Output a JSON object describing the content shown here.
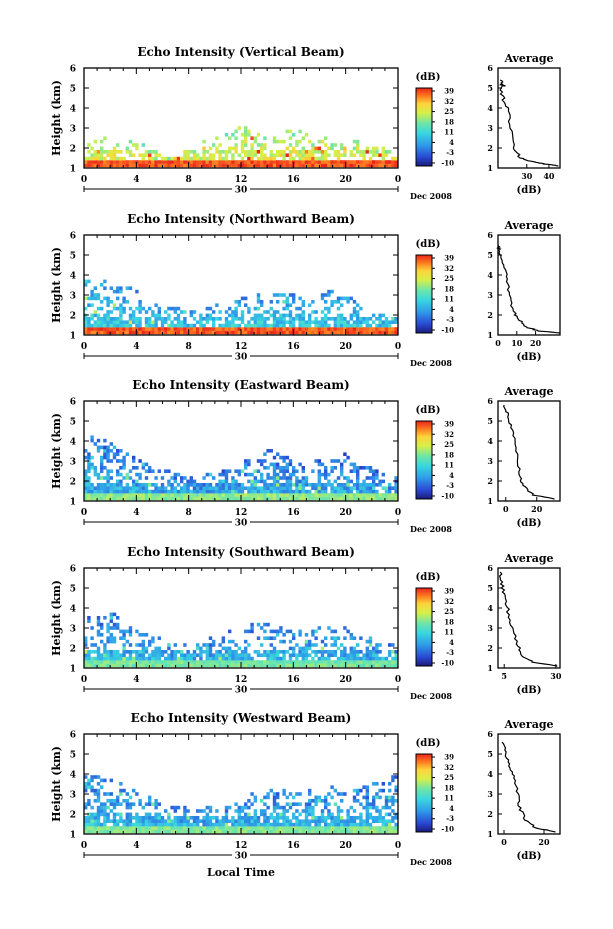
{
  "chart_data": {
    "type": "heatmap",
    "layout": "5 stacked range-time echo intensity panels, each with a color bar and an average profile plot",
    "panels": [
      {
        "title": "Echo Intensity (Vertical Beam)",
        "ylabel": "Height (km)",
        "ylim": [
          1,
          6
        ],
        "yticks": [
          "1",
          "2",
          "3",
          "4",
          "5",
          "6"
        ],
        "xticks": [
          "0",
          "4",
          "8",
          "12",
          "16",
          "20",
          "0"
        ],
        "xlim": [
          0,
          24
        ],
        "date_label": "30",
        "month_label": "Dec 2008",
        "colorbar": {
          "unit": "(dB)",
          "ticks": [
            "39",
            "32",
            "25",
            "18",
            "11",
            "4",
            "-3",
            "-10"
          ],
          "range": [
            -10,
            39
          ]
        },
        "echo": {
          "base": 24,
          "surface_echo": 39,
          "top_envelope": [
            2.3,
            2.4,
            2.6,
            2.3,
            2.2,
            2.2,
            1.4,
            1.5,
            2.0,
            2.2,
            2.5,
            2.6,
            3.0,
            2.8,
            2.7,
            3.2,
            3.0,
            2.6,
            2.4,
            2.5,
            2.3,
            2.4,
            2.0,
            1.9,
            1.7
          ],
          "density": 0.45
        },
        "average": {
          "title": "Average",
          "xlabel": "(dB)",
          "xlim": [
            17,
            45
          ],
          "xticks": [
            "30",
            "40"
          ],
          "ylim": [
            1,
            6
          ],
          "profile": [
            [
              45,
              1.1
            ],
            [
              38,
              1.2
            ],
            [
              33,
              1.3
            ],
            [
              27,
              1.5
            ],
            [
              24,
              2.0
            ],
            [
              23,
              3.0
            ],
            [
              21,
              4.0
            ],
            [
              19,
              4.6
            ],
            [
              18,
              5.2
            ],
            [
              20,
              5.1
            ],
            [
              18,
              5.4
            ]
          ]
        }
      },
      {
        "title": "Echo Intensity (Northward Beam)",
        "ylabel": "Height (km)",
        "ylim": [
          1,
          6
        ],
        "yticks": [
          "1",
          "2",
          "3",
          "4",
          "5",
          "6"
        ],
        "xticks": [
          "0",
          "4",
          "8",
          "12",
          "16",
          "20",
          "0"
        ],
        "xlim": [
          0,
          24
        ],
        "date_label": "30",
        "month_label": "Dec 2008",
        "colorbar": {
          "unit": "(dB)",
          "ticks": [
            "39",
            "32",
            "25",
            "18",
            "11",
            "4",
            "-3",
            "-10"
          ],
          "range": [
            -10,
            39
          ]
        },
        "echo": {
          "base": 8,
          "surface_echo": 39,
          "top_envelope": [
            3.7,
            3.8,
            3.6,
            3.4,
            3.2,
            2.6,
            2.5,
            2.4,
            2.2,
            2.2,
            2.5,
            2.6,
            2.8,
            2.9,
            3.0,
            3.1,
            3.0,
            2.8,
            2.9,
            3.2,
            3.0,
            2.6,
            2.2,
            2.0,
            1.8
          ],
          "density": 0.55
        },
        "average": {
          "title": "Average",
          "xlabel": "(dB)",
          "xlim": [
            0,
            33
          ],
          "xticks": [
            "0",
            "10",
            "20"
          ],
          "ylim": [
            1,
            6
          ],
          "profile": [
            [
              33,
              1.1
            ],
            [
              22,
              1.2
            ],
            [
              15,
              1.4
            ],
            [
              11,
              1.8
            ],
            [
              8,
              2.2
            ],
            [
              6,
              3.0
            ],
            [
              5,
              3.8
            ],
            [
              3,
              4.5
            ],
            [
              1,
              5.2
            ],
            [
              0,
              5.5
            ]
          ]
        }
      },
      {
        "title": "Echo Intensity (Eastward Beam)",
        "ylabel": "Height (km)",
        "ylim": [
          1,
          6
        ],
        "yticks": [
          "1",
          "2",
          "3",
          "4",
          "5",
          "6"
        ],
        "xticks": [
          "0",
          "4",
          "8",
          "12",
          "16",
          "20",
          "0"
        ],
        "xlim": [
          0,
          24
        ],
        "date_label": "30",
        "month_label": "Dec 2008",
        "colorbar": {
          "unit": "(dB)",
          "ticks": [
            "39",
            "32",
            "25",
            "18",
            "11",
            "4",
            "-3",
            "-10"
          ],
          "range": [
            -10,
            39
          ]
        },
        "echo": {
          "base": 4,
          "surface_echo": 22,
          "top_envelope": [
            4.0,
            4.2,
            3.9,
            3.5,
            3.0,
            2.8,
            2.5,
            2.4,
            2.2,
            2.2,
            2.4,
            2.6,
            2.8,
            3.2,
            3.6,
            3.4,
            3.0,
            2.8,
            3.0,
            3.2,
            3.3,
            2.8,
            2.6,
            2.4,
            2.2
          ],
          "density": 0.62
        },
        "average": {
          "title": "Average",
          "xlabel": "(dB)",
          "xlim": [
            -5,
            35
          ],
          "xticks": [
            "0",
            "20"
          ],
          "ylim": [
            1,
            6
          ],
          "profile": [
            [
              32,
              1.1
            ],
            [
              18,
              1.3
            ],
            [
              12,
              1.7
            ],
            [
              9,
              2.2
            ],
            [
              8,
              3.0
            ],
            [
              6,
              4.0
            ],
            [
              3,
              4.8
            ],
            [
              1,
              5.4
            ],
            [
              -1,
              5.8
            ]
          ]
        }
      },
      {
        "title": "Echo Intensity (Southward Beam)",
        "ylabel": "Height (km)",
        "ylim": [
          1,
          6
        ],
        "yticks": [
          "1",
          "2",
          "3",
          "4",
          "5",
          "6"
        ],
        "xticks": [
          "0",
          "4",
          "8",
          "12",
          "16",
          "20",
          "0"
        ],
        "xlim": [
          0,
          24
        ],
        "date_label": "30",
        "month_label": "Dec 2008",
        "colorbar": {
          "unit": "(dB)",
          "ticks": [
            "39",
            "32",
            "25",
            "18",
            "11",
            "4",
            "-3",
            "-10"
          ],
          "range": [
            -10,
            39
          ]
        },
        "echo": {
          "base": 5,
          "surface_echo": 20,
          "top_envelope": [
            3.4,
            3.6,
            3.8,
            3.2,
            2.9,
            2.6,
            2.4,
            2.2,
            2.1,
            2.3,
            2.6,
            2.8,
            3.0,
            3.2,
            3.4,
            3.1,
            2.9,
            2.8,
            3.1,
            3.3,
            3.0,
            2.6,
            2.4,
            2.2,
            2.0
          ],
          "density": 0.5
        },
        "average": {
          "title": "Average",
          "xlabel": "(dB)",
          "xlim": [
            2,
            32
          ],
          "xticks": [
            "5",
            "30"
          ],
          "ylim": [
            1,
            6
          ],
          "profile": [
            [
              30,
              1.1
            ],
            [
              19,
              1.3
            ],
            [
              14,
              1.6
            ],
            [
              11,
              2.2
            ],
            [
              9,
              3.0
            ],
            [
              7,
              3.8
            ],
            [
              5,
              4.6
            ],
            [
              4,
              5.2
            ],
            [
              3,
              5.8
            ]
          ]
        }
      },
      {
        "title": "Echo Intensity (Westward Beam)",
        "ylabel": "Height (km)",
        "ylim": [
          1,
          6
        ],
        "yticks": [
          "1",
          "2",
          "3",
          "4",
          "5",
          "6"
        ],
        "xticks": [
          "0",
          "4",
          "8",
          "12",
          "16",
          "20",
          "0"
        ],
        "xlim": [
          0,
          24
        ],
        "date_label": "30",
        "month_label": "Dec 2008",
        "xlabel": "Local Time",
        "colorbar": {
          "unit": "(dB)",
          "ticks": [
            "39",
            "32",
            "25",
            "18",
            "11",
            "4",
            "-3",
            "-10"
          ],
          "range": [
            -10,
            39
          ]
        },
        "echo": {
          "base": 5,
          "surface_echo": 21,
          "top_envelope": [
            3.8,
            4.0,
            3.7,
            3.4,
            3.1,
            2.8,
            2.5,
            2.4,
            2.2,
            2.2,
            2.4,
            2.5,
            2.7,
            3.0,
            3.4,
            3.2,
            3.0,
            3.1,
            3.2,
            3.3,
            3.0,
            3.2,
            3.4,
            3.6,
            4.0
          ],
          "density": 0.6
        },
        "average": {
          "title": "Average",
          "xlabel": "(dB)",
          "xlim": [
            -3,
            28
          ],
          "xticks": [
            "0",
            "20"
          ],
          "ylim": [
            1,
            6
          ],
          "profile": [
            [
              26,
              1.1
            ],
            [
              16,
              1.3
            ],
            [
              11,
              1.7
            ],
            [
              8,
              2.3
            ],
            [
              7,
              3.0
            ],
            [
              5,
              3.8
            ],
            [
              3,
              4.4
            ],
            [
              1,
              5.0
            ],
            [
              -1,
              5.6
            ]
          ]
        }
      }
    ]
  }
}
